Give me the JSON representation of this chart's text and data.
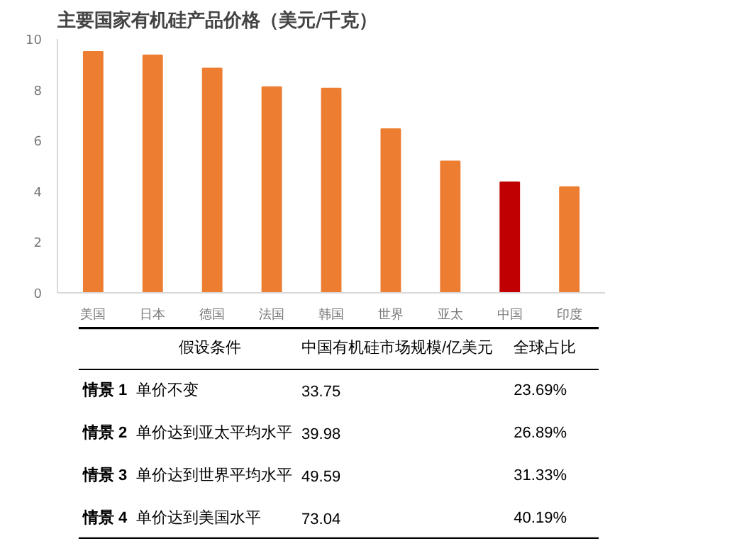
{
  "chart_data": [
    {
      "type": "bar",
      "title": "主要国家有机硅产品价格（美元/千克）",
      "categories": [
        "美国",
        "日本",
        "德国",
        "法国",
        "韩国",
        "世界",
        "亚太",
        "中国",
        "印度"
      ],
      "values": [
        9.5,
        9.36,
        8.84,
        8.11,
        8.05,
        6.45,
        5.18,
        4.36,
        4.17
      ],
      "colors": [
        "#ed7d31",
        "#ed7d31",
        "#ed7d31",
        "#ed7d31",
        "#ed7d31",
        "#ed7d31",
        "#ed7d31",
        "#c00000",
        "#ed7d31"
      ],
      "ylim": [
        0,
        10
      ],
      "yticks": [
        0,
        2,
        4,
        6,
        8,
        10
      ]
    },
    {
      "type": "other",
      "categories": [
        null,
        "假设条件",
        "中国有机硅市场规模/亿美元",
        "全球占比"
      ],
      "y_categories": [
        "情景 1",
        "情景 2",
        "情景 3",
        "情景 4"
      ],
      "cell_labels": [
        [
          "单价不变",
          "33.75",
          "23.69%"
        ],
        [
          "单价达到亚太平均水平",
          "39.98",
          "26.89%"
        ],
        [
          "单价达到世界平均水平",
          "49.59",
          "31.33%"
        ],
        [
          "单价达到美国水平",
          "73.04",
          "40.19%"
        ]
      ]
    }
  ]
}
